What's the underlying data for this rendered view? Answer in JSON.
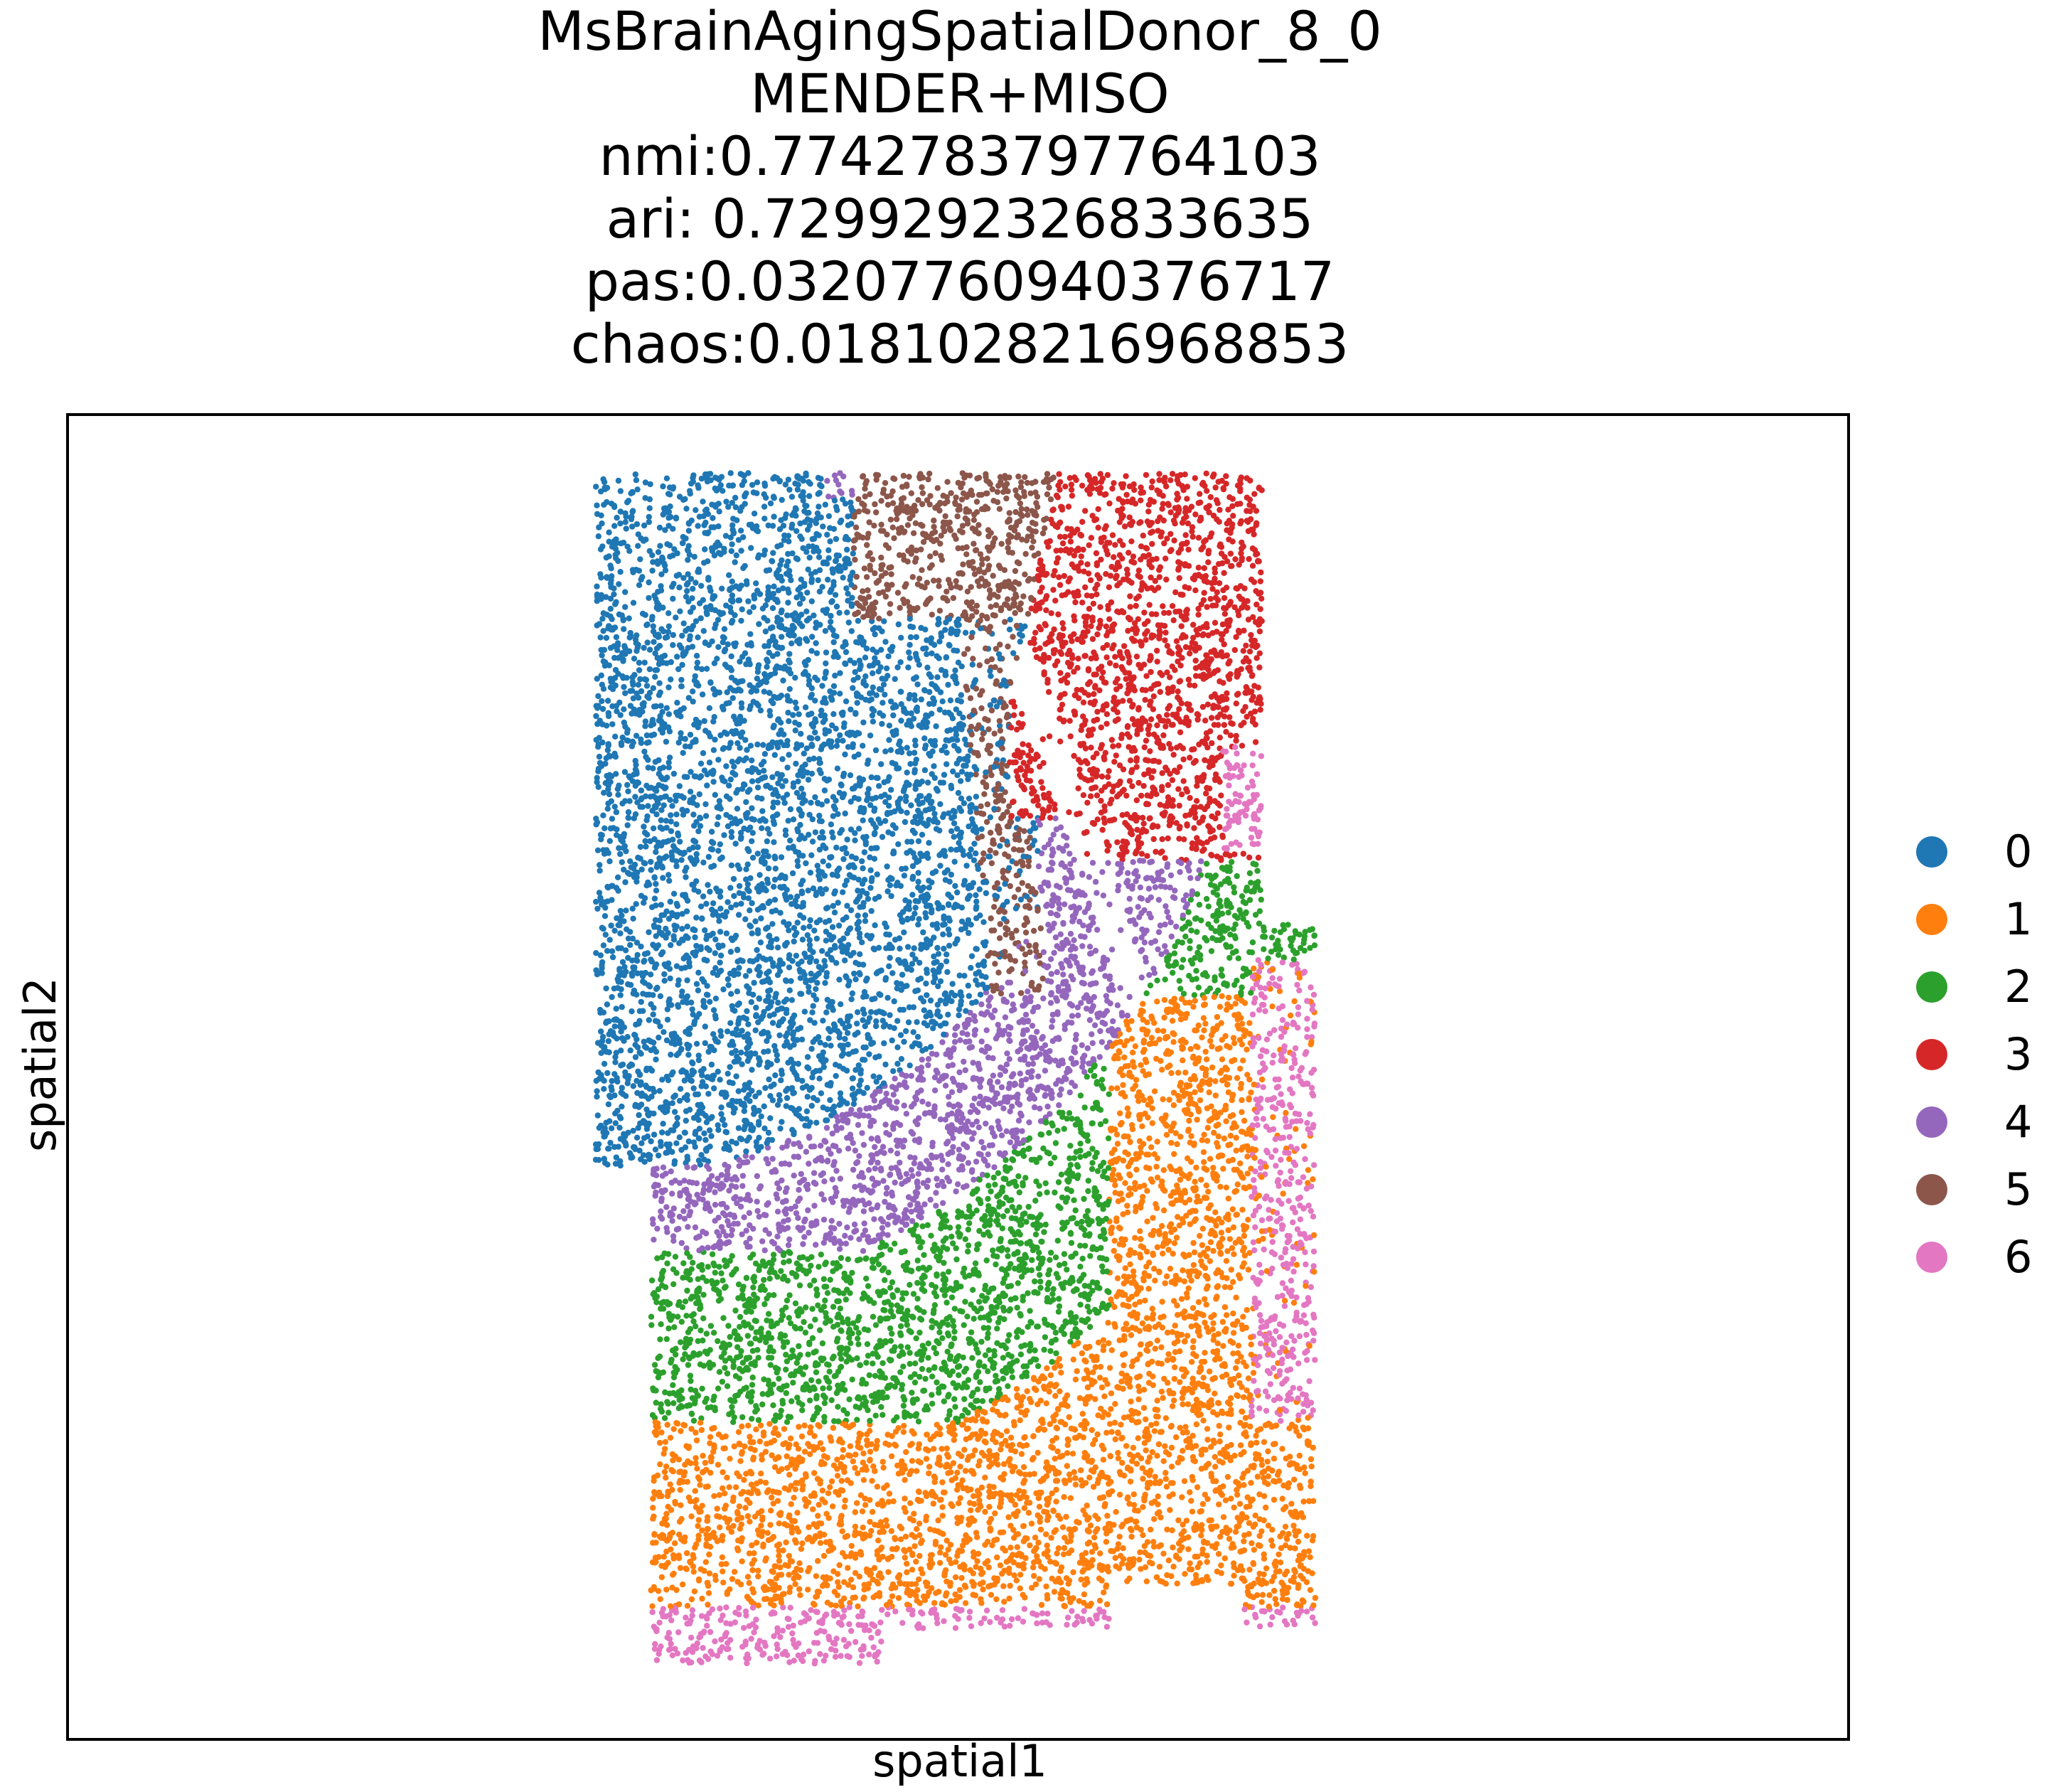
{
  "chart_data": {
    "type": "scatter",
    "title_lines": [
      "MsBrainAgingSpatialDonor_8_0",
      "MENDER+MISO",
      "nmi:0.7742783797764103",
      "ari: 0.7299292326833635",
      "pas:0.03207760940376717",
      "chaos:0.0181028216968853"
    ],
    "xlabel": "spatial1",
    "ylabel": "spatial2",
    "xticks": [],
    "yticks": [],
    "grid": false,
    "legend_position": "right",
    "legend": [
      {
        "label": "0",
        "color": "#1f77b4"
      },
      {
        "label": "1",
        "color": "#ff7f0e"
      },
      {
        "label": "2",
        "color": "#2ca02c"
      },
      {
        "label": "3",
        "color": "#d62728"
      },
      {
        "label": "4",
        "color": "#9467bd"
      },
      {
        "label": "5",
        "color": "#8c564b"
      },
      {
        "label": "6",
        "color": "#e377c2"
      }
    ],
    "clusters": [
      {
        "label": "0",
        "color": "#1f77b4",
        "region": "upper-left large block"
      },
      {
        "label": "1",
        "color": "#ff7f0e",
        "region": "lower block and right middle strip"
      },
      {
        "label": "2",
        "color": "#2ca02c",
        "region": "band between 4 and 1"
      },
      {
        "label": "3",
        "color": "#d62728",
        "region": "upper-right block"
      },
      {
        "label": "4",
        "color": "#9467bd",
        "region": "curved band below 0"
      },
      {
        "label": "5",
        "color": "#8c564b",
        "region": "top center wedge"
      },
      {
        "label": "6",
        "color": "#e377c2",
        "region": "right edge and bottom fringe"
      }
    ]
  }
}
